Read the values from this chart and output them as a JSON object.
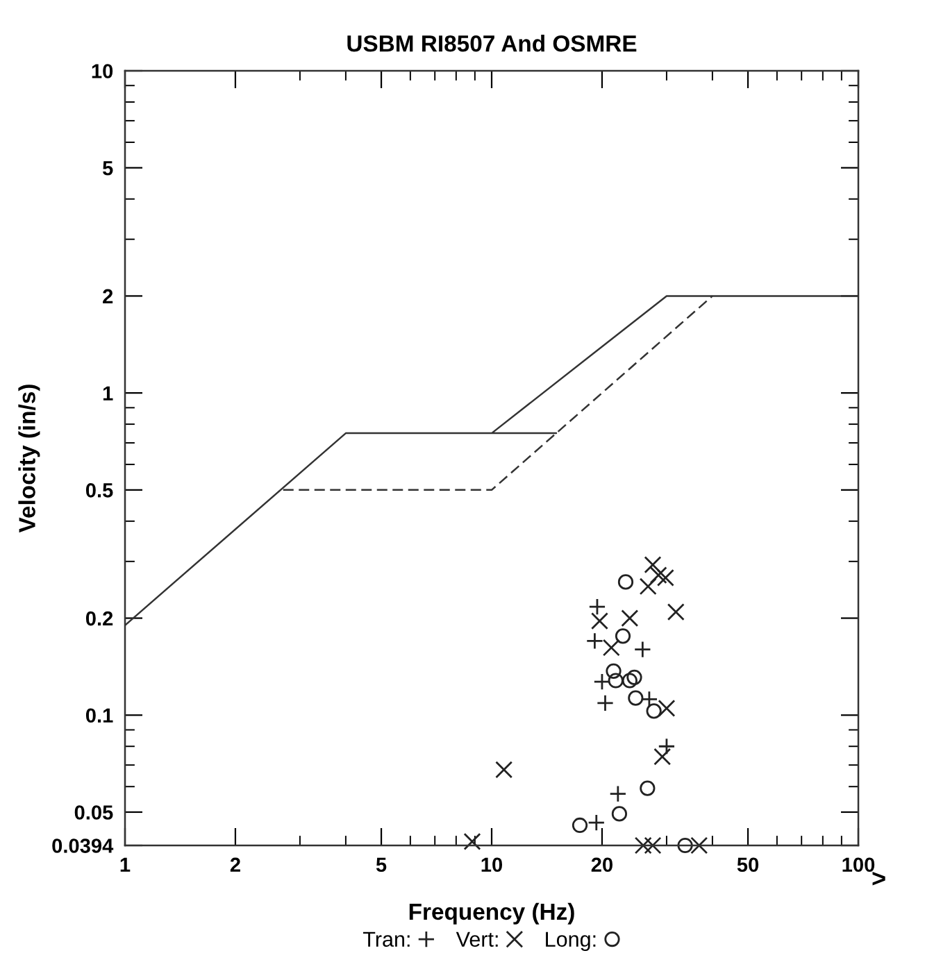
{
  "chart_data": {
    "type": "scatter",
    "title": "USBM RI8507 And OSMRE",
    "xlabel": "Frequency (Hz)",
    "ylabel": "Velocity (in/s)",
    "log": "xy",
    "xlim": [
      1,
      100
    ],
    "ylim": [
      0.0394,
      10
    ],
    "xticks": [
      1,
      2,
      5,
      10,
      20,
      50,
      100
    ],
    "yticks": [
      0.0394,
      0.05,
      0.1,
      0.2,
      0.5,
      1,
      2,
      5,
      10
    ],
    "grid": false,
    "legend": "bottom",
    "annotations": [
      ">"
    ],
    "series": [
      {
        "type": "line",
        "line_style": "solid",
        "color": "#333333",
        "x": [
          1,
          4,
          15,
          10,
          30,
          100
        ],
        "values": [
          0.19,
          0.75,
          0.75,
          0.75,
          2,
          2
        ]
      },
      {
        "type": "line",
        "line_style": "dashed",
        "color": "#333333",
        "x": [
          2.7,
          10,
          40
        ],
        "values": [
          0.5,
          0.5,
          2.0
        ]
      },
      {
        "name": "Tran:",
        "marker": "plus",
        "color": "#222222",
        "x": [
          19.4,
          19.1,
          25.8,
          20.0,
          20.4,
          26.9,
          30.0,
          22.1,
          19.3
        ],
        "values": [
          0.217,
          0.17,
          0.16,
          0.127,
          0.109,
          0.112,
          0.08,
          0.057,
          0.0464
        ]
      },
      {
        "name": "Vert:",
        "marker": "cross",
        "color": "#222222",
        "x": [
          27.5,
          28.5,
          29.8,
          26.7,
          31.8,
          19.7,
          23.8,
          21.2,
          30.0,
          29.2,
          10.8,
          8.85,
          25.9,
          27.5,
          36.8
        ],
        "values": [
          0.293,
          0.272,
          0.267,
          0.251,
          0.209,
          0.196,
          0.2,
          0.162,
          0.105,
          0.0743,
          0.0677,
          0.0405,
          0.0394,
          0.0394,
          0.0394
        ]
      },
      {
        "name": "Long:",
        "marker": "circle",
        "color": "#222222",
        "x": [
          23.2,
          22.8,
          21.5,
          21.8,
          23.8,
          24.5,
          24.7,
          27.7,
          26.6,
          22.3,
          17.4,
          33.7
        ],
        "values": [
          0.259,
          0.176,
          0.137,
          0.128,
          0.128,
          0.131,
          0.113,
          0.103,
          0.0593,
          0.0494,
          0.0455,
          0.0394
        ]
      }
    ]
  }
}
